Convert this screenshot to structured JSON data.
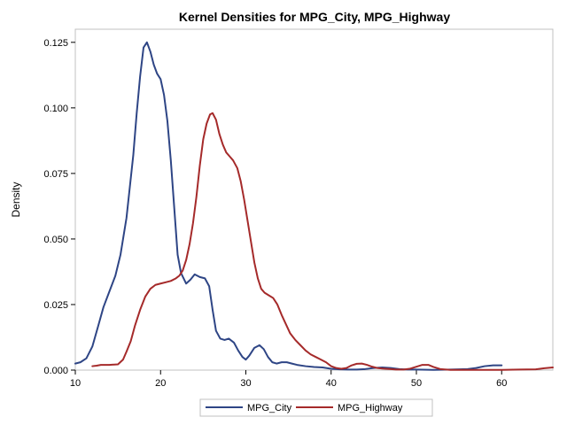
{
  "chart_data": {
    "type": "line",
    "title": "Kernel Densities for MPG_City, MPG_Highway",
    "xlabel": "",
    "ylabel": "Density",
    "xlim": [
      10,
      66
    ],
    "ylim": [
      0,
      0.13
    ],
    "x_ticks": [
      10,
      20,
      30,
      40,
      50,
      60
    ],
    "y_ticks": [
      0.0,
      0.025,
      0.05,
      0.075,
      0.1,
      0.125
    ],
    "y_tick_labels": [
      "0.000",
      "0.025",
      "0.050",
      "0.075",
      "0.100",
      "0.125"
    ],
    "grid": false,
    "legend_position": "bottom",
    "series": [
      {
        "name": "MPG_City",
        "color": "#2e4585",
        "points": [
          [
            10.0,
            0.0025
          ],
          [
            10.6,
            0.003
          ],
          [
            11.3,
            0.0045
          ],
          [
            12.0,
            0.009
          ],
          [
            12.7,
            0.017
          ],
          [
            13.3,
            0.024
          ],
          [
            14.0,
            0.03
          ],
          [
            14.7,
            0.036
          ],
          [
            15.3,
            0.044
          ],
          [
            16.0,
            0.058
          ],
          [
            16.4,
            0.07
          ],
          [
            16.8,
            0.082
          ],
          [
            17.2,
            0.098
          ],
          [
            17.6,
            0.112
          ],
          [
            18.0,
            0.123
          ],
          [
            18.4,
            0.125
          ],
          [
            18.8,
            0.1215
          ],
          [
            19.2,
            0.1165
          ],
          [
            19.6,
            0.113
          ],
          [
            20.0,
            0.111
          ],
          [
            20.4,
            0.105
          ],
          [
            20.8,
            0.095
          ],
          [
            21.2,
            0.08
          ],
          [
            21.6,
            0.062
          ],
          [
            22.0,
            0.044
          ],
          [
            22.4,
            0.037
          ],
          [
            23.0,
            0.033
          ],
          [
            23.5,
            0.0345
          ],
          [
            24.0,
            0.0365
          ],
          [
            24.6,
            0.0355
          ],
          [
            25.2,
            0.035
          ],
          [
            25.7,
            0.032
          ],
          [
            26.1,
            0.023
          ],
          [
            26.5,
            0.015
          ],
          [
            27.0,
            0.012
          ],
          [
            27.5,
            0.0115
          ],
          [
            28.0,
            0.012
          ],
          [
            28.6,
            0.0105
          ],
          [
            29.1,
            0.0075
          ],
          [
            29.6,
            0.005
          ],
          [
            30.0,
            0.004
          ],
          [
            30.4,
            0.0055
          ],
          [
            31.0,
            0.0085
          ],
          [
            31.6,
            0.0095
          ],
          [
            32.1,
            0.008
          ],
          [
            32.6,
            0.005
          ],
          [
            33.1,
            0.003
          ],
          [
            33.6,
            0.0025
          ],
          [
            34.2,
            0.003
          ],
          [
            34.8,
            0.003
          ],
          [
            35.4,
            0.0025
          ],
          [
            36.0,
            0.002
          ],
          [
            37.0,
            0.0015
          ],
          [
            38.0,
            0.0012
          ],
          [
            39.0,
            0.001
          ],
          [
            40.0,
            0.0005
          ],
          [
            41.0,
            0.0003
          ],
          [
            42.0,
            0.0002
          ],
          [
            43.0,
            0.0002
          ],
          [
            44.0,
            0.0004
          ],
          [
            45.0,
            0.0008
          ],
          [
            46.0,
            0.001
          ],
          [
            47.0,
            0.0008
          ],
          [
            48.0,
            0.0004
          ],
          [
            49.0,
            0.0002
          ],
          [
            50.0,
            0.0002
          ],
          [
            52.0,
            0.0001
          ],
          [
            54.0,
            0.0002
          ],
          [
            56.0,
            0.0004
          ],
          [
            57.0,
            0.0008
          ],
          [
            58.0,
            0.0015
          ],
          [
            59.0,
            0.0018
          ],
          [
            60.0,
            0.0018
          ]
        ]
      },
      {
        "name": "MPG_Highway",
        "color": "#a52a2a",
        "points": [
          [
            12.0,
            0.0015
          ],
          [
            12.5,
            0.0017
          ],
          [
            13.0,
            0.002
          ],
          [
            14.0,
            0.002
          ],
          [
            15.0,
            0.0022
          ],
          [
            15.6,
            0.004
          ],
          [
            16.0,
            0.007
          ],
          [
            16.5,
            0.011
          ],
          [
            17.0,
            0.017
          ],
          [
            17.6,
            0.023
          ],
          [
            18.2,
            0.028
          ],
          [
            18.8,
            0.031
          ],
          [
            19.4,
            0.0325
          ],
          [
            20.0,
            0.033
          ],
          [
            20.6,
            0.0335
          ],
          [
            21.2,
            0.034
          ],
          [
            21.8,
            0.035
          ],
          [
            22.2,
            0.036
          ],
          [
            22.6,
            0.038
          ],
          [
            23.0,
            0.042
          ],
          [
            23.4,
            0.048
          ],
          [
            23.8,
            0.056
          ],
          [
            24.2,
            0.066
          ],
          [
            24.6,
            0.078
          ],
          [
            25.0,
            0.088
          ],
          [
            25.4,
            0.094
          ],
          [
            25.8,
            0.0975
          ],
          [
            26.1,
            0.098
          ],
          [
            26.5,
            0.0955
          ],
          [
            26.9,
            0.09
          ],
          [
            27.3,
            0.086
          ],
          [
            27.7,
            0.083
          ],
          [
            28.1,
            0.0815
          ],
          [
            28.5,
            0.08
          ],
          [
            29.0,
            0.077
          ],
          [
            29.4,
            0.072
          ],
          [
            29.8,
            0.065
          ],
          [
            30.2,
            0.057
          ],
          [
            30.6,
            0.049
          ],
          [
            31.0,
            0.041
          ],
          [
            31.4,
            0.035
          ],
          [
            31.8,
            0.031
          ],
          [
            32.2,
            0.0295
          ],
          [
            32.7,
            0.0285
          ],
          [
            33.2,
            0.0275
          ],
          [
            33.7,
            0.025
          ],
          [
            34.2,
            0.021
          ],
          [
            34.7,
            0.0175
          ],
          [
            35.2,
            0.014
          ],
          [
            35.8,
            0.0115
          ],
          [
            36.4,
            0.0095
          ],
          [
            37.0,
            0.0075
          ],
          [
            37.6,
            0.006
          ],
          [
            38.2,
            0.005
          ],
          [
            38.8,
            0.004
          ],
          [
            39.4,
            0.003
          ],
          [
            40.0,
            0.0015
          ],
          [
            40.6,
            0.0008
          ],
          [
            41.2,
            0.0005
          ],
          [
            41.8,
            0.0008
          ],
          [
            42.4,
            0.0018
          ],
          [
            43.0,
            0.0024
          ],
          [
            43.6,
            0.0025
          ],
          [
            44.2,
            0.002
          ],
          [
            44.8,
            0.0013
          ],
          [
            45.4,
            0.0008
          ],
          [
            46.0,
            0.0006
          ],
          [
            47.0,
            0.0004
          ],
          [
            47.6,
            0.0002
          ],
          [
            48.5,
            0.0002
          ],
          [
            49.2,
            0.0005
          ],
          [
            50.0,
            0.0013
          ],
          [
            50.7,
            0.002
          ],
          [
            51.4,
            0.002
          ],
          [
            52.0,
            0.0012
          ],
          [
            52.8,
            0.0004
          ],
          [
            54.0,
            0.0001
          ],
          [
            56.0,
            0.0001
          ],
          [
            58.0,
            0.0001
          ],
          [
            60.0,
            0.0001
          ],
          [
            62.0,
            0.0002
          ],
          [
            64.0,
            0.0003
          ],
          [
            65.0,
            0.0007
          ],
          [
            66.0,
            0.001
          ]
        ]
      }
    ]
  }
}
